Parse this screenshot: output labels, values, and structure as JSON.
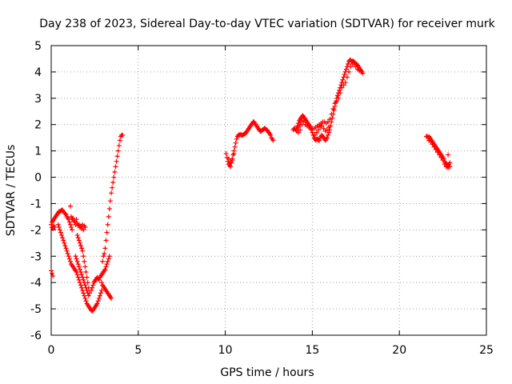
{
  "chart_data": {
    "type": "scatter",
    "title": "Day 238 of 2023, Sidereal Day-to-day VTEC variation (SDTVAR) for receiver murk",
    "xlabel": "GPS time / hours",
    "ylabel": "SDTVAR / TECUs",
    "xlim": [
      0,
      25
    ],
    "ylim": [
      -6,
      5
    ],
    "x_ticks": [
      0,
      5,
      10,
      15,
      20,
      25
    ],
    "y_ticks": [
      -6,
      -5,
      -4,
      -3,
      -2,
      -1,
      0,
      1,
      2,
      3,
      4,
      5
    ],
    "grid": true,
    "marker": "+",
    "color": "#ff0000",
    "points": [
      [
        0.0,
        -3.55
      ],
      [
        0.05,
        -3.65
      ],
      [
        0.1,
        -3.75
      ],
      [
        0.0,
        -1.8
      ],
      [
        0.05,
        -1.7
      ],
      [
        0.1,
        -1.65
      ],
      [
        0.15,
        -1.6
      ],
      [
        0.2,
        -1.55
      ],
      [
        0.25,
        -1.5
      ],
      [
        0.3,
        -1.45
      ],
      [
        0.35,
        -1.4
      ],
      [
        0.4,
        -1.35
      ],
      [
        0.45,
        -1.3
      ],
      [
        0.5,
        -1.3
      ],
      [
        0.55,
        -1.28
      ],
      [
        0.6,
        -1.25
      ],
      [
        0.65,
        -1.25
      ],
      [
        0.7,
        -1.3
      ],
      [
        0.75,
        -1.35
      ],
      [
        0.8,
        -1.38
      ],
      [
        0.85,
        -1.42
      ],
      [
        0.9,
        -1.5
      ],
      [
        0.95,
        -1.55
      ],
      [
        1.0,
        -1.6
      ],
      [
        1.05,
        -1.7
      ],
      [
        1.1,
        -1.8
      ],
      [
        1.15,
        -1.9
      ],
      [
        1.2,
        -2.0
      ],
      [
        0.05,
        -1.9
      ],
      [
        0.1,
        -1.95
      ],
      [
        0.15,
        -1.85
      ],
      [
        0.2,
        -1.9
      ],
      [
        0.4,
        -1.8
      ],
      [
        0.45,
        -1.9
      ],
      [
        0.5,
        -2.0
      ],
      [
        0.55,
        -2.1
      ],
      [
        0.6,
        -2.2
      ],
      [
        0.65,
        -2.3
      ],
      [
        0.7,
        -2.4
      ],
      [
        0.75,
        -2.5
      ],
      [
        0.8,
        -2.6
      ],
      [
        0.85,
        -2.7
      ],
      [
        0.9,
        -2.8
      ],
      [
        0.95,
        -2.9
      ],
      [
        1.0,
        -3.0
      ],
      [
        1.05,
        -3.1
      ],
      [
        1.1,
        -3.2
      ],
      [
        1.15,
        -3.3
      ],
      [
        1.2,
        -3.35
      ],
      [
        1.25,
        -3.4
      ],
      [
        1.3,
        -3.45
      ],
      [
        1.35,
        -3.5
      ],
      [
        1.4,
        -3.55
      ],
      [
        1.45,
        -3.6
      ],
      [
        1.5,
        -3.7
      ],
      [
        1.55,
        -3.8
      ],
      [
        1.6,
        -3.9
      ],
      [
        1.65,
        -4.0
      ],
      [
        1.7,
        -4.1
      ],
      [
        1.75,
        -4.2
      ],
      [
        1.8,
        -4.3
      ],
      [
        1.85,
        -4.4
      ],
      [
        1.9,
        -4.5
      ],
      [
        1.95,
        -4.6
      ],
      [
        2.0,
        -4.7
      ],
      [
        2.05,
        -4.8
      ],
      [
        2.1,
        -4.85
      ],
      [
        2.15,
        -4.9
      ],
      [
        2.2,
        -4.95
      ],
      [
        2.25,
        -5.0
      ],
      [
        2.3,
        -5.05
      ],
      [
        2.35,
        -5.08
      ],
      [
        2.4,
        -5.05
      ],
      [
        2.45,
        -5.0
      ],
      [
        2.5,
        -4.95
      ],
      [
        2.55,
        -4.9
      ],
      [
        2.6,
        -4.85
      ],
      [
        2.65,
        -4.8
      ],
      [
        2.7,
        -4.7
      ],
      [
        2.75,
        -4.6
      ],
      [
        2.8,
        -4.5
      ],
      [
        2.85,
        -4.4
      ],
      [
        2.9,
        -4.3
      ],
      [
        1.1,
        -1.1
      ],
      [
        1.15,
        -1.5
      ],
      [
        1.2,
        -1.6
      ],
      [
        1.25,
        -1.55
      ],
      [
        1.3,
        -1.65
      ],
      [
        1.35,
        -1.7
      ],
      [
        1.4,
        -1.8
      ],
      [
        1.45,
        -1.6
      ],
      [
        1.5,
        -1.75
      ],
      [
        1.55,
        -1.85
      ],
      [
        1.6,
        -1.8
      ],
      [
        1.65,
        -1.9
      ],
      [
        1.7,
        -1.85
      ],
      [
        1.75,
        -1.95
      ],
      [
        1.8,
        -1.8
      ],
      [
        1.85,
        -2.0
      ],
      [
        1.9,
        -1.85
      ],
      [
        1.95,
        -1.9
      ],
      [
        1.5,
        -2.2
      ],
      [
        1.55,
        -2.3
      ],
      [
        1.6,
        -2.4
      ],
      [
        1.65,
        -2.5
      ],
      [
        1.7,
        -2.6
      ],
      [
        1.75,
        -2.7
      ],
      [
        1.8,
        -2.8
      ],
      [
        1.85,
        -3.0
      ],
      [
        1.9,
        -3.2
      ],
      [
        1.95,
        -3.4
      ],
      [
        2.0,
        -3.6
      ],
      [
        2.05,
        -3.8
      ],
      [
        2.1,
        -4.0
      ],
      [
        2.15,
        -4.2
      ],
      [
        2.2,
        -4.4
      ],
      [
        1.4,
        -3.0
      ],
      [
        1.45,
        -3.1
      ],
      [
        1.5,
        -3.2
      ],
      [
        1.55,
        -3.3
      ],
      [
        1.6,
        -3.4
      ],
      [
        1.65,
        -3.5
      ],
      [
        1.7,
        -3.6
      ],
      [
        1.75,
        -3.7
      ],
      [
        1.8,
        -3.8
      ],
      [
        1.85,
        -3.9
      ],
      [
        1.9,
        -4.0
      ],
      [
        1.95,
        -4.1
      ],
      [
        2.0,
        -4.2
      ],
      [
        2.05,
        -4.3
      ],
      [
        2.1,
        -4.4
      ],
      [
        2.15,
        -4.5
      ],
      [
        2.3,
        -4.3
      ],
      [
        2.35,
        -4.2
      ],
      [
        2.4,
        -4.1
      ],
      [
        2.45,
        -4.0
      ],
      [
        2.5,
        -3.95
      ],
      [
        2.55,
        -3.9
      ],
      [
        2.6,
        -3.85
      ],
      [
        2.65,
        -3.8
      ],
      [
        2.7,
        -3.85
      ],
      [
        2.75,
        -3.9
      ],
      [
        2.8,
        -3.8
      ],
      [
        2.85,
        -3.75
      ],
      [
        2.9,
        -3.7
      ],
      [
        2.95,
        -3.65
      ],
      [
        3.0,
        -3.6
      ],
      [
        3.05,
        -3.55
      ],
      [
        3.1,
        -3.5
      ],
      [
        3.15,
        -3.4
      ],
      [
        3.2,
        -3.3
      ],
      [
        3.25,
        -3.2
      ],
      [
        3.3,
        -3.1
      ],
      [
        3.35,
        -3.0
      ],
      [
        2.9,
        -4.0
      ],
      [
        2.95,
        -4.1
      ],
      [
        3.0,
        -4.15
      ],
      [
        3.05,
        -4.2
      ],
      [
        3.1,
        -4.25
      ],
      [
        3.15,
        -4.3
      ],
      [
        3.2,
        -4.35
      ],
      [
        3.25,
        -4.4
      ],
      [
        3.3,
        -4.45
      ],
      [
        3.35,
        -4.5
      ],
      [
        3.4,
        -4.55
      ],
      [
        3.45,
        -4.6
      ],
      [
        2.95,
        -3.2
      ],
      [
        3.0,
        -3.0
      ],
      [
        3.05,
        -2.9
      ],
      [
        3.1,
        -2.7
      ],
      [
        3.15,
        -2.4
      ],
      [
        3.2,
        -2.1
      ],
      [
        3.25,
        -1.8
      ],
      [
        3.3,
        -1.5
      ],
      [
        3.35,
        -1.2
      ],
      [
        3.4,
        -0.9
      ],
      [
        3.45,
        -0.6
      ],
      [
        3.5,
        -0.4
      ],
      [
        3.55,
        -0.2
      ],
      [
        3.6,
        0.0
      ],
      [
        3.65,
        0.2
      ],
      [
        3.7,
        0.4
      ],
      [
        3.75,
        0.6
      ],
      [
        3.8,
        0.8
      ],
      [
        3.85,
        1.0
      ],
      [
        3.9,
        1.2
      ],
      [
        3.95,
        1.4
      ],
      [
        4.0,
        1.55
      ],
      [
        4.05,
        1.6
      ],
      [
        4.1,
        1.6
      ],
      [
        10.05,
        0.9
      ],
      [
        10.1,
        0.75
      ],
      [
        10.15,
        0.6
      ],
      [
        10.2,
        0.5
      ],
      [
        10.25,
        0.45
      ],
      [
        10.3,
        0.4
      ],
      [
        10.35,
        0.55
      ],
      [
        10.4,
        0.7
      ],
      [
        10.45,
        0.85
      ],
      [
        10.5,
        1.0
      ],
      [
        10.55,
        1.15
      ],
      [
        10.6,
        1.3
      ],
      [
        10.65,
        1.45
      ],
      [
        10.7,
        1.55
      ],
      [
        10.75,
        1.6
      ],
      [
        10.8,
        1.6
      ],
      [
        10.85,
        1.62
      ],
      [
        10.9,
        1.62
      ],
      [
        10.95,
        1.6
      ],
      [
        11.0,
        1.6
      ],
      [
        11.05,
        1.62
      ],
      [
        11.1,
        1.65
      ],
      [
        11.15,
        1.65
      ],
      [
        11.2,
        1.7
      ],
      [
        11.25,
        1.75
      ],
      [
        11.3,
        1.8
      ],
      [
        11.35,
        1.85
      ],
      [
        11.4,
        1.9
      ],
      [
        11.45,
        1.95
      ],
      [
        11.5,
        2.0
      ],
      [
        11.55,
        2.05
      ],
      [
        11.6,
        2.1
      ],
      [
        11.65,
        2.1
      ],
      [
        11.7,
        2.05
      ],
      [
        11.75,
        2.0
      ],
      [
        11.8,
        1.95
      ],
      [
        11.85,
        1.9
      ],
      [
        11.9,
        1.85
      ],
      [
        11.95,
        1.8
      ],
      [
        12.0,
        1.75
      ],
      [
        12.05,
        1.75
      ],
      [
        12.1,
        1.78
      ],
      [
        12.15,
        1.8
      ],
      [
        12.2,
        1.82
      ],
      [
        12.25,
        1.85
      ],
      [
        12.3,
        1.85
      ],
      [
        12.35,
        1.8
      ],
      [
        12.4,
        1.8
      ],
      [
        12.45,
        1.75
      ],
      [
        12.5,
        1.7
      ],
      [
        12.55,
        1.65
      ],
      [
        12.6,
        1.6
      ],
      [
        12.65,
        1.5
      ],
      [
        12.7,
        1.45
      ],
      [
        12.75,
        1.4
      ],
      [
        10.2,
        0.7
      ],
      [
        10.3,
        0.6
      ],
      [
        10.4,
        0.65
      ],
      [
        10.5,
        0.9
      ],
      [
        13.9,
        1.8
      ],
      [
        13.95,
        1.85
      ],
      [
        14.0,
        1.85
      ],
      [
        14.05,
        1.8
      ],
      [
        14.1,
        1.85
      ],
      [
        14.15,
        1.95
      ],
      [
        14.2,
        2.05
      ],
      [
        14.25,
        2.15
      ],
      [
        14.3,
        2.2
      ],
      [
        14.35,
        2.25
      ],
      [
        14.4,
        2.3
      ],
      [
        14.45,
        2.35
      ],
      [
        14.5,
        2.3
      ],
      [
        14.55,
        2.25
      ],
      [
        14.6,
        2.2
      ],
      [
        14.65,
        2.15
      ],
      [
        14.7,
        2.1
      ],
      [
        14.75,
        2.05
      ],
      [
        14.8,
        2.0
      ],
      [
        14.85,
        1.95
      ],
      [
        14.9,
        1.9
      ],
      [
        14.95,
        1.8
      ],
      [
        15.0,
        1.7
      ],
      [
        15.05,
        1.6
      ],
      [
        15.1,
        1.5
      ],
      [
        15.15,
        1.45
      ],
      [
        15.2,
        1.4
      ],
      [
        15.25,
        1.45
      ],
      [
        15.3,
        1.45
      ],
      [
        15.35,
        1.4
      ],
      [
        15.4,
        1.4
      ],
      [
        15.45,
        1.5
      ],
      [
        15.5,
        1.55
      ],
      [
        15.55,
        1.6
      ],
      [
        15.6,
        1.55
      ],
      [
        15.65,
        1.5
      ],
      [
        15.7,
        1.45
      ],
      [
        15.75,
        1.4
      ],
      [
        15.8,
        1.45
      ],
      [
        15.85,
        1.5
      ],
      [
        15.9,
        1.6
      ],
      [
        15.95,
        1.7
      ],
      [
        16.0,
        1.8
      ],
      [
        16.05,
        1.95
      ],
      [
        16.1,
        2.1
      ],
      [
        16.15,
        2.25
      ],
      [
        16.2,
        2.4
      ],
      [
        16.25,
        2.55
      ],
      [
        16.3,
        2.7
      ],
      [
        16.35,
        2.85
      ],
      [
        16.4,
        3.0
      ],
      [
        16.45,
        3.1
      ],
      [
        16.5,
        3.2
      ],
      [
        16.55,
        3.3
      ],
      [
        16.6,
        3.4
      ],
      [
        16.65,
        3.5
      ],
      [
        16.7,
        3.6
      ],
      [
        16.75,
        3.7
      ],
      [
        16.8,
        3.8
      ],
      [
        16.85,
        3.9
      ],
      [
        16.9,
        4.0
      ],
      [
        16.95,
        4.1
      ],
      [
        17.0,
        4.2
      ],
      [
        17.05,
        4.3
      ],
      [
        17.1,
        4.4
      ],
      [
        17.15,
        4.45
      ],
      [
        17.2,
        4.45
      ],
      [
        17.25,
        4.4
      ],
      [
        17.3,
        4.4
      ],
      [
        17.35,
        4.42
      ],
      [
        17.4,
        4.38
      ],
      [
        17.45,
        4.35
      ],
      [
        17.5,
        4.3
      ],
      [
        17.55,
        4.3
      ],
      [
        17.6,
        4.25
      ],
      [
        17.65,
        4.2
      ],
      [
        17.7,
        4.15
      ],
      [
        17.75,
        4.1
      ],
      [
        17.8,
        4.05
      ],
      [
        17.85,
        4.0
      ],
      [
        17.9,
        3.95
      ],
      [
        14.2,
        1.9
      ],
      [
        14.3,
        2.0
      ],
      [
        14.4,
        2.1
      ],
      [
        14.5,
        2.1
      ],
      [
        14.6,
        2.0
      ],
      [
        14.7,
        1.95
      ],
      [
        14.8,
        1.9
      ],
      [
        14.9,
        1.85
      ],
      [
        15.0,
        1.85
      ],
      [
        15.1,
        1.85
      ],
      [
        15.2,
        1.9
      ],
      [
        15.3,
        1.95
      ],
      [
        15.4,
        2.0
      ],
      [
        15.5,
        2.05
      ],
      [
        15.6,
        2.1
      ],
      [
        15.7,
        2.1
      ],
      [
        15.8,
        2.05
      ],
      [
        15.9,
        2.1
      ],
      [
        16.0,
        2.2
      ],
      [
        16.1,
        2.4
      ],
      [
        16.2,
        2.6
      ],
      [
        16.3,
        2.8
      ],
      [
        16.4,
        2.9
      ],
      [
        16.5,
        3.0
      ],
      [
        16.6,
        3.2
      ],
      [
        16.7,
        3.4
      ],
      [
        16.8,
        3.5
      ],
      [
        16.9,
        3.6
      ],
      [
        17.0,
        3.8
      ],
      [
        17.1,
        4.0
      ],
      [
        17.2,
        4.2
      ],
      [
        17.3,
        4.3
      ],
      [
        17.4,
        4.3
      ],
      [
        17.5,
        4.2
      ],
      [
        17.6,
        4.1
      ],
      [
        17.7,
        4.05
      ],
      [
        17.8,
        4.0
      ],
      [
        14.1,
        1.75
      ],
      [
        14.2,
        1.7
      ],
      [
        14.3,
        1.8
      ],
      [
        14.4,
        2.0
      ],
      [
        14.5,
        2.15
      ],
      [
        15.15,
        1.6
      ],
      [
        15.25,
        1.7
      ],
      [
        15.35,
        1.8
      ],
      [
        15.45,
        1.9
      ],
      [
        15.55,
        1.95
      ],
      [
        15.65,
        1.85
      ],
      [
        15.75,
        1.75
      ],
      [
        15.85,
        1.8
      ],
      [
        15.95,
        1.9
      ],
      [
        21.55,
        1.55
      ],
      [
        21.6,
        1.55
      ],
      [
        21.65,
        1.5
      ],
      [
        21.7,
        1.55
      ],
      [
        21.75,
        1.5
      ],
      [
        21.8,
        1.45
      ],
      [
        21.85,
        1.4
      ],
      [
        21.9,
        1.35
      ],
      [
        21.95,
        1.3
      ],
      [
        22.0,
        1.25
      ],
      [
        22.05,
        1.2
      ],
      [
        22.1,
        1.15
      ],
      [
        22.15,
        1.1
      ],
      [
        22.2,
        1.05
      ],
      [
        22.25,
        1.0
      ],
      [
        22.3,
        0.95
      ],
      [
        22.35,
        0.9
      ],
      [
        22.4,
        0.85
      ],
      [
        22.45,
        0.8
      ],
      [
        22.5,
        0.75
      ],
      [
        22.55,
        0.7
      ],
      [
        22.6,
        0.6
      ],
      [
        22.65,
        0.55
      ],
      [
        22.7,
        0.5
      ],
      [
        22.75,
        0.45
      ],
      [
        22.8,
        0.45
      ],
      [
        22.85,
        0.5
      ],
      [
        22.9,
        0.55
      ],
      [
        22.8,
        0.85
      ],
      [
        21.7,
        1.4
      ],
      [
        21.8,
        1.35
      ],
      [
        21.9,
        1.25
      ],
      [
        22.0,
        1.15
      ],
      [
        22.1,
        1.05
      ],
      [
        22.2,
        0.95
      ],
      [
        22.3,
        0.85
      ],
      [
        22.4,
        0.75
      ],
      [
        22.5,
        0.65
      ],
      [
        22.6,
        0.5
      ],
      [
        22.7,
        0.4
      ],
      [
        22.8,
        0.35
      ],
      [
        22.9,
        0.4
      ]
    ]
  }
}
